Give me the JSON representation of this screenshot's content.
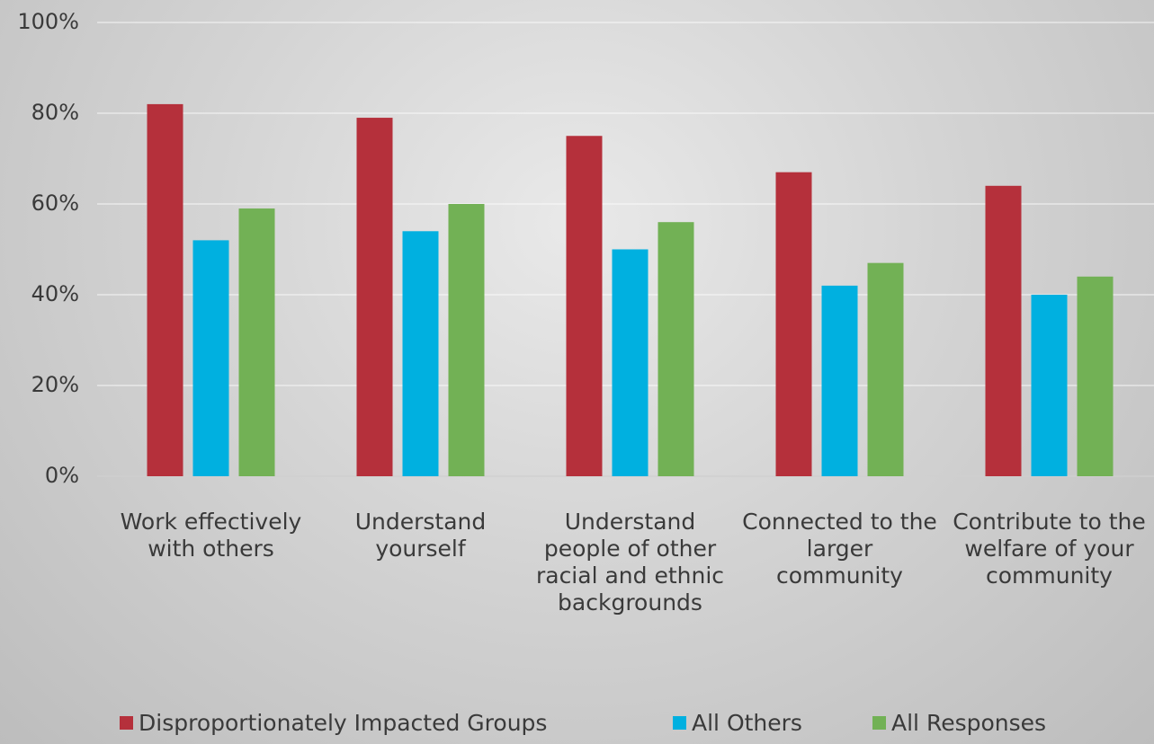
{
  "chart_data": {
    "type": "bar",
    "categories": [
      "Work effectively with others",
      "Understand yourself",
      "Understand people of other racial and ethnic backgrounds",
      "Connected to the larger community",
      "Contribute to the welfare of your community"
    ],
    "series": [
      {
        "name": "Disproportionately Impacted Groups",
        "color": "#b5303b",
        "values": [
          82,
          79,
          75,
          67,
          64
        ]
      },
      {
        "name": "All Others",
        "color": "#00b0e0",
        "values": [
          52,
          54,
          50,
          42,
          40
        ]
      },
      {
        "name": "All Responses",
        "color": "#72b155",
        "values": [
          59,
          60,
          56,
          47,
          44
        ]
      }
    ],
    "ylim": [
      0,
      100
    ],
    "yticks": [
      {
        "value": 0,
        "label": "0%"
      },
      {
        "value": 20,
        "label": "20%"
      },
      {
        "value": 40,
        "label": "40%"
      },
      {
        "value": 60,
        "label": "60%"
      },
      {
        "value": 80,
        "label": "80%"
      },
      {
        "value": 100,
        "label": "100%"
      }
    ],
    "grid": true,
    "legend": "bottom"
  }
}
